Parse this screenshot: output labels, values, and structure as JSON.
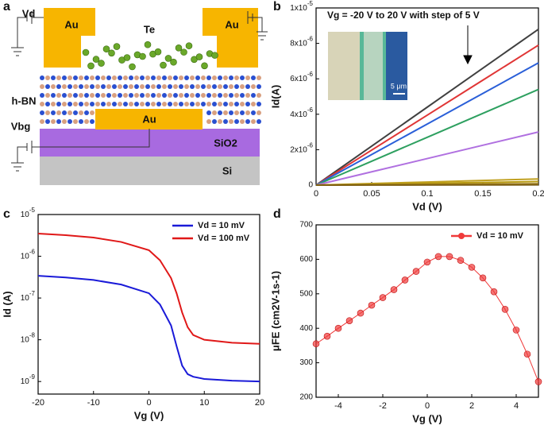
{
  "panel_labels": [
    "a",
    "b",
    "c",
    "d"
  ],
  "diagram": {
    "labels": [
      "Au",
      "Au",
      "Te",
      "h-BN",
      "Au",
      "SiO2",
      "Si",
      "Vd",
      "Vbg"
    ]
  },
  "chart_data": [
    {
      "type": "line",
      "x": [
        0,
        0.05,
        0.1,
        0.15,
        0.2
      ],
      "xlim": [
        0,
        0.2
      ],
      "ylim": [
        0,
        1e-05
      ],
      "xticks": [
        0,
        0.05,
        0.1,
        0.15,
        0.2
      ],
      "yticks": [
        0,
        {
          "value": 2e-06,
          "label": "2x10-6"
        },
        {
          "value": 4e-06,
          "label": "4x10-6"
        },
        {
          "value": 6e-06,
          "label": "6x10-6"
        },
        {
          "value": 8e-06,
          "label": "8x10-6"
        },
        {
          "value": 1e-05,
          "label": "1x10-5"
        }
      ],
      "xlabel": "Vd (V)",
      "ylabel": "Id(A)",
      "annotation": "Vg = -20 V to 20 V with step of 5 V",
      "inset_scale": "5 μm",
      "series": [
        {
          "color": "#404040",
          "values": [
            0,
            2.2e-06,
            4.4e-06,
            6.6e-06,
            8.8e-06
          ]
        },
        {
          "color": "#e03535",
          "values": [
            0,
            1.975e-06,
            3.95e-06,
            5.925e-06,
            7.9e-06
          ]
        },
        {
          "color": "#2a5fd8",
          "values": [
            0,
            1.725e-06,
            3.45e-06,
            5.175e-06,
            6.9e-06
          ]
        },
        {
          "color": "#2ea060",
          "values": [
            0,
            1.35e-06,
            2.7e-06,
            4.05e-06,
            5.4e-06
          ]
        },
        {
          "color": "#b070e0",
          "values": [
            0,
            7.5e-07,
            1.5e-06,
            2.25e-06,
            3e-06
          ]
        },
        {
          "color": "#c0a020",
          "values": [
            0,
            8.75e-08,
            1.75e-07,
            2.625e-07,
            3.5e-07
          ]
        },
        {
          "color": "#b89a10",
          "values": [
            0,
            5e-08,
            1e-07,
            1.5e-07,
            2e-07
          ]
        },
        {
          "color": "#a08020",
          "values": [
            0,
            2e-08,
            4e-08,
            6e-08,
            8e-08
          ]
        },
        {
          "color": "#806010",
          "values": [
            0,
            5e-09,
            1e-08,
            1.5e-08,
            2e-08
          ]
        }
      ]
    },
    {
      "type": "line",
      "log_y": true,
      "legend": "upper right",
      "x": [
        -20,
        -15,
        -10,
        -5,
        0,
        2,
        4,
        5,
        6,
        7,
        8,
        10,
        15,
        20
      ],
      "xlim": [
        -20,
        20
      ],
      "ylim": [
        5e-10,
        1e-05
      ],
      "xticks": [
        -20,
        -10,
        0,
        10,
        20
      ],
      "yticks": [
        {
          "value": 1e-09,
          "label": "10-9"
        },
        {
          "value": 1e-08,
          "label": "10-8"
        },
        {
          "value": 1e-07,
          "label": "10-7"
        },
        {
          "value": 1e-06,
          "label": "10-6"
        },
        {
          "value": 1e-05,
          "label": "10-5"
        }
      ],
      "xlabel": "Vg (V)",
      "ylabel": "Id (A)",
      "series": [
        {
          "name": "Vd = 10 mV",
          "color": "#1a1ad8",
          "values": [
            3.4e-07,
            3.1e-07,
            2.7e-07,
            2.1e-07,
            1.3e-07,
            7e-08,
            2.2e-08,
            7e-09,
            2.4e-09,
            1.5e-09,
            1.3e-09,
            1.15e-09,
            1.05e-09,
            1e-09
          ]
        },
        {
          "name": "Vd = 100 mV",
          "color": "#e01818",
          "values": [
            3.5e-06,
            3.2e-06,
            2.8e-06,
            2.2e-06,
            1.4e-06,
            8e-07,
            3e-07,
            1.3e-07,
            4.5e-08,
            2e-08,
            1.3e-08,
            1e-08,
            8.5e-09,
            8e-09
          ]
        }
      ]
    },
    {
      "type": "line",
      "marker": "circle",
      "legend": "upper right",
      "x": [
        -5,
        -4.5,
        -4,
        -3.5,
        -3,
        -2.5,
        -2,
        -1.5,
        -1,
        -0.5,
        0,
        0.5,
        1,
        1.5,
        2,
        2.5,
        3,
        3.5,
        4,
        4.5,
        5
      ],
      "xlim": [
        -5,
        5
      ],
      "ylim": [
        200,
        700
      ],
      "xticks": [
        -4,
        -2,
        0,
        2,
        4
      ],
      "yticks": [
        200,
        300,
        400,
        500,
        600,
        700
      ],
      "xlabel": "Vg (V)",
      "ylabel": "μFE (cm2V-1s-1)",
      "series": [
        {
          "name": "Vd = 10 mV",
          "color": "#f03a3a",
          "values": [
            355,
            377,
            400,
            422,
            444,
            467,
            489,
            512,
            540,
            565,
            592,
            608,
            608,
            597,
            577,
            546,
            506,
            455,
            395,
            325,
            245
          ]
        }
      ]
    }
  ]
}
